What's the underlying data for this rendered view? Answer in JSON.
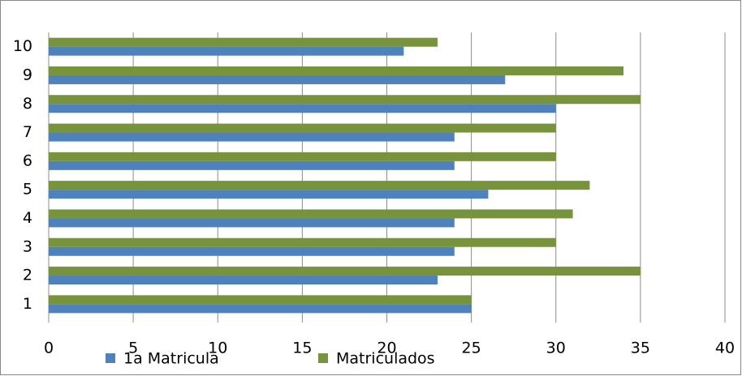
{
  "chart_data": {
    "type": "bar",
    "orientation": "horizontal",
    "categories": [
      "1",
      "2",
      "3",
      "4",
      "5",
      "6",
      "7",
      "8",
      "9",
      "10"
    ],
    "series": [
      {
        "name": "1a Matricula",
        "color": "#4f81bd",
        "values": [
          25,
          23,
          24,
          24,
          26,
          24,
          24,
          30,
          27,
          21
        ]
      },
      {
        "name": "Matriculados",
        "color": "#77933c",
        "values": [
          25,
          35,
          30,
          31,
          32,
          30,
          30,
          35,
          34,
          23
        ]
      }
    ],
    "xlim": [
      0,
      40
    ],
    "xticks": [
      0,
      5,
      10,
      15,
      20,
      25,
      30,
      35,
      40
    ],
    "grid": true,
    "legend": "bottom"
  }
}
